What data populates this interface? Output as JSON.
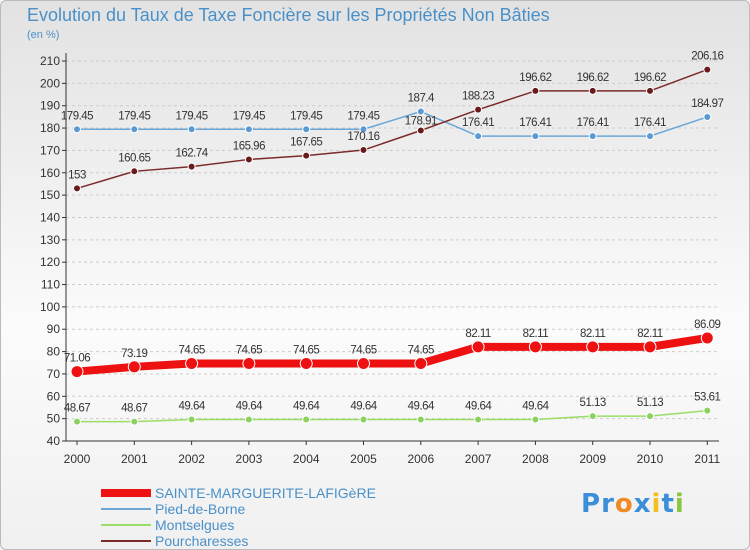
{
  "chart_data": {
    "type": "line",
    "title": "Evolution du Taux de Taxe Foncière sur les Propriétés Non Bâties",
    "ylabel": "(en %)",
    "xlabel": "",
    "ylim": [
      40,
      210
    ],
    "y_ticks": [
      40,
      50,
      60,
      70,
      80,
      90,
      100,
      110,
      120,
      130,
      140,
      150,
      160,
      170,
      180,
      190,
      200,
      210
    ],
    "categories": [
      "2000",
      "2001",
      "2002",
      "2003",
      "2004",
      "2005",
      "2006",
      "2007",
      "2008",
      "2009",
      "2010",
      "2011"
    ],
    "series": [
      {
        "name": "SAINTE-MARGUERITE-LAFIGèRE",
        "color": "#ee1111",
        "values": [
          71.06,
          73.19,
          74.65,
          74.65,
          74.65,
          74.65,
          74.65,
          82.11,
          82.11,
          82.11,
          82.11,
          86.09
        ],
        "labels": [
          "71.06",
          "73.19",
          "74.65",
          "74.65",
          "74.65",
          "74.65",
          "74.65",
          "82.11",
          "82.11",
          "82.11",
          "82.11",
          "86.09"
        ]
      },
      {
        "name": "Pied-de-Borne",
        "color": "#6aa6d6",
        "values": [
          179.45,
          179.45,
          179.45,
          179.45,
          179.45,
          179.45,
          187.4,
          176.41,
          176.41,
          176.41,
          176.41,
          184.97
        ],
        "labels": [
          "179.45",
          "179.45",
          "179.45",
          "179.45",
          "179.45",
          "179.45",
          "187.4",
          "176.41",
          "176.41",
          "176.41",
          "176.41",
          "184.97"
        ]
      },
      {
        "name": "Montselgues",
        "color": "#99dd66",
        "values": [
          48.67,
          48.67,
          49.64,
          49.64,
          49.64,
          49.64,
          49.64,
          49.64,
          49.64,
          51.13,
          51.13,
          53.61
        ],
        "labels": [
          "48.67",
          "48.67",
          "49.64",
          "49.64",
          "49.64",
          "49.64",
          "49.64",
          "49.64",
          "49.64",
          "51.13",
          "51.13",
          "53.61"
        ]
      },
      {
        "name": "Pourcharesses",
        "color": "#7a2a2a",
        "values": [
          153,
          160.65,
          162.74,
          165.96,
          167.65,
          170.16,
          178.91,
          188.23,
          196.62,
          196.62,
          196.62,
          206.16
        ],
        "labels": [
          "153",
          "160.65",
          "162.74",
          "165.96",
          "167.65",
          "170.16",
          "178.91",
          "188.23",
          "196.62",
          "196.62",
          "196.62",
          "206.16"
        ]
      }
    ],
    "legend_position": "bottom-left"
  },
  "logo": {
    "letters": [
      "P",
      "r",
      "o",
      "x",
      "i",
      "t",
      "i"
    ],
    "colors": [
      "#3a8fd8",
      "#3a8fd8",
      "#f08a24",
      "#3a8fd8",
      "#f0c020",
      "#3a8fd8",
      "#8ac640"
    ]
  }
}
